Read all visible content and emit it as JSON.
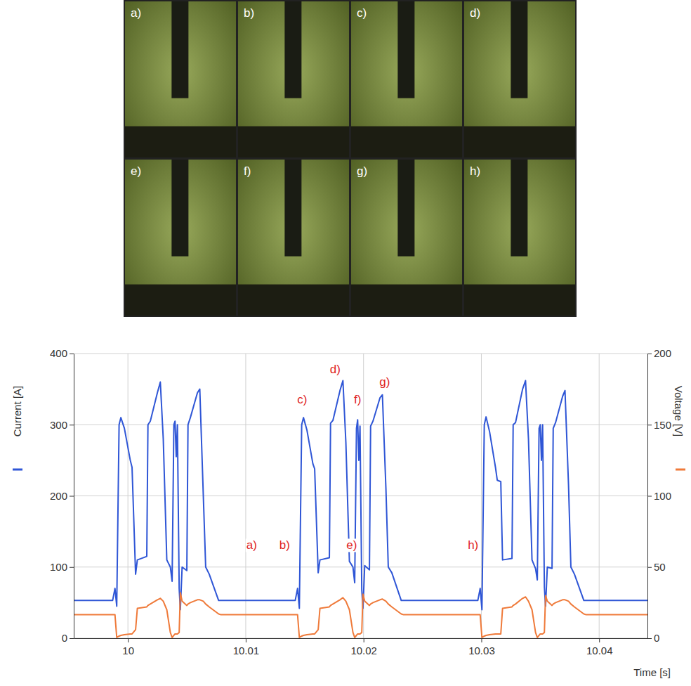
{
  "photos": {
    "labels": [
      "a)",
      "b)",
      "c)",
      "d)",
      "e)",
      "f)",
      "g)",
      "h)"
    ]
  },
  "chart_data": {
    "type": "line",
    "xlabel": "Time [s]",
    "x": [
      9.9954,
      9.9987,
      9.9989,
      9.99905,
      9.99925,
      9.9994,
      9.9997,
      10.0002,
      10.00035,
      10.00065,
      10.0008,
      10.0016,
      10.0017,
      10.0019,
      10.0025,
      10.00275,
      10.003,
      10.0033,
      10.0036,
      10.00375,
      10.0039,
      10.004,
      10.0041,
      10.0042,
      10.00435,
      10.00445,
      10.0046,
      10.005,
      10.0051,
      10.0053,
      10.0059,
      10.0061,
      10.0064,
      10.0066,
      10.0069,
      10.0077,
      10.0079,
      10.0142,
      10.0144,
      10.01455,
      10.01475,
      10.0149,
      10.0152,
      10.0157,
      10.01585,
      10.01615,
      10.0163,
      10.0171,
      10.0172,
      10.0174,
      10.018,
      10.01825,
      10.0185,
      10.0188,
      10.0191,
      10.01925,
      10.0194,
      10.0195,
      10.0196,
      10.0197,
      10.01985,
      10.01995,
      10.0201,
      10.0205,
      10.0206,
      10.0208,
      10.0214,
      10.0216,
      10.0219,
      10.0221,
      10.0224,
      10.0232,
      10.0234,
      10.0297,
      10.0299,
      10.03005,
      10.03025,
      10.0304,
      10.0307,
      10.0312,
      10.03135,
      10.03165,
      10.0318,
      10.0326,
      10.0327,
      10.0329,
      10.0335,
      10.03375,
      10.034,
      10.0343,
      10.0346,
      10.03475,
      10.0349,
      10.035,
      10.0351,
      10.0352,
      10.03535,
      10.03545,
      10.0356,
      10.036,
      10.0361,
      10.0363,
      10.0369,
      10.0371,
      10.0374,
      10.0376,
      10.0379,
      10.0387,
      10.0389,
      10.0441
    ],
    "series": [
      {
        "name": "Current [A]",
        "color": "#2f56d6",
        "axis": "y",
        "values": [
          53,
          53,
          70,
          45,
          300,
          310,
          295,
          250,
          240,
          90,
          110,
          115,
          300,
          305,
          345,
          360,
          280,
          110,
          100,
          80,
          300,
          305,
          255,
          300,
          70,
          40,
          100,
          95,
          300,
          310,
          345,
          350,
          200,
          100,
          90,
          53,
          53,
          53,
          70,
          42,
          300,
          310,
          292,
          245,
          238,
          92,
          110,
          113,
          302,
          306,
          348,
          362,
          275,
          108,
          100,
          78,
          295,
          307,
          250,
          298,
          68,
          42,
          102,
          96,
          298,
          305,
          338,
          342,
          210,
          100,
          92,
          53,
          53,
          53,
          70,
          40,
          300,
          311,
          290,
          240,
          222,
          220,
          110,
          112,
          300,
          303,
          350,
          362,
          280,
          110,
          98,
          82,
          295,
          300,
          250,
          300,
          72,
          45,
          100,
          98,
          295,
          303,
          340,
          348,
          215,
          100,
          90,
          53,
          53,
          53
        ]
      },
      {
        "name": "Voltage [V]",
        "color": "#ef7a3a",
        "axis": "y2",
        "values": [
          16.5,
          16.5,
          16.5,
          0.5,
          1.5,
          2,
          2.5,
          3,
          3,
          6,
          21,
          22,
          23,
          24,
          27,
          28,
          26,
          20,
          4,
          0.5,
          2,
          3,
          3,
          3,
          4,
          32,
          26,
          23,
          24,
          25,
          27,
          27,
          26,
          24,
          22,
          17,
          16.5,
          16.5,
          16.5,
          0.5,
          1.5,
          2,
          2.5,
          3,
          3,
          6,
          21,
          22,
          23,
          24,
          27,
          28.5,
          26,
          20,
          4,
          0.5,
          2,
          3,
          3,
          3,
          4,
          31,
          26,
          23,
          24,
          25,
          27,
          27.5,
          26,
          24,
          22,
          17,
          16.5,
          16.5,
          16.5,
          0.5,
          1.5,
          2,
          2.5,
          3,
          3,
          3,
          21,
          22,
          23,
          24,
          28,
          29,
          26,
          20,
          4,
          0.5,
          2,
          3,
          3,
          3,
          4,
          30,
          26,
          23,
          24,
          25,
          27,
          27,
          26,
          24,
          22,
          17,
          16.5,
          16.5
        ]
      }
    ],
    "xlim": [
      9.9954,
      10.0441
    ],
    "xticks": [
      10,
      10.01,
      10.02,
      10.03,
      10.04
    ],
    "ylim": [
      0,
      400
    ],
    "yticks": [
      0,
      100,
      200,
      300,
      400
    ],
    "y2lim": [
      0,
      200
    ],
    "y2ticks": [
      0,
      50,
      100,
      150,
      200
    ],
    "grid": true,
    "annotations": [
      {
        "text": "a)",
        "x": 10.0105,
        "y": 125
      },
      {
        "text": "b)",
        "x": 10.0133,
        "y": 125
      },
      {
        "text": "c)",
        "x": 10.0148,
        "y": 330
      },
      {
        "text": "d)",
        "x": 10.0176,
        "y": 372
      },
      {
        "text": "e)",
        "x": 10.019,
        "y": 125
      },
      {
        "text": "f)",
        "x": 10.0195,
        "y": 330
      },
      {
        "text": "g)",
        "x": 10.0218,
        "y": 355
      },
      {
        "text": "h)",
        "x": 10.0293,
        "y": 125
      }
    ]
  }
}
